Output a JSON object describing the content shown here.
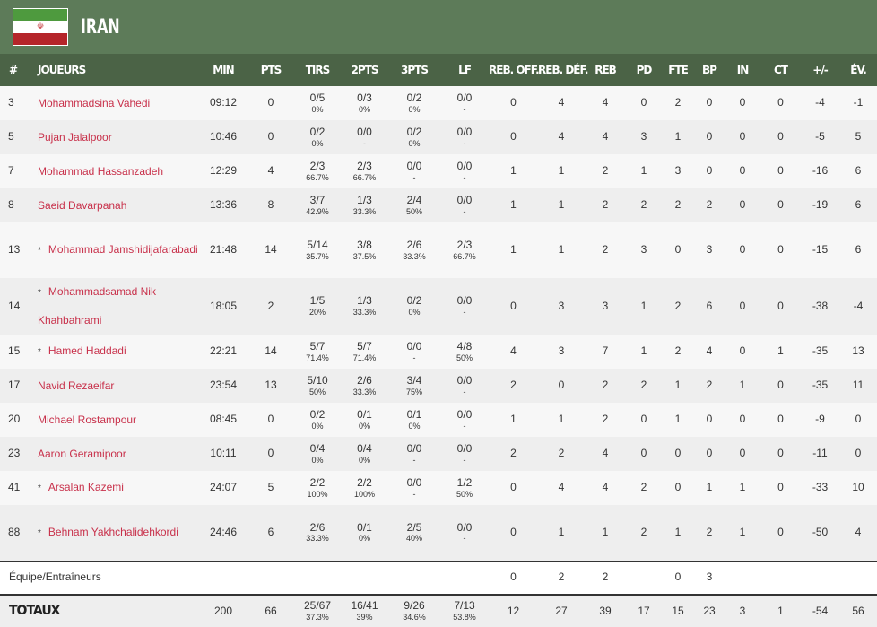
{
  "team": {
    "name": "IRAN",
    "flag_icon": "iran-flag"
  },
  "headers": [
    "#",
    "JOUEURS",
    "MIN",
    "PTS",
    "TIRS",
    "2PTS",
    "3PTS",
    "LF",
    "REB. OFF.",
    "REB. DÉF.",
    "REB",
    "PD",
    "FTE",
    "BP",
    "IN",
    "CT",
    "+/-",
    "ÉV."
  ],
  "players": [
    {
      "num": "3",
      "name": "Mohammadsina Vahedi",
      "starter": false,
      "min": "09:12",
      "pts": "0",
      "tirs": "0/5",
      "tirs_pct": "0%",
      "p2": "0/3",
      "p2_pct": "0%",
      "p3": "0/2",
      "p3_pct": "0%",
      "lf": "0/0",
      "lf_pct": "-",
      "ro": "0",
      "rd": "4",
      "reb": "4",
      "pd": "0",
      "fte": "2",
      "bp": "0",
      "in": "0",
      "ct": "0",
      "pm": "-4",
      "ev": "-1"
    },
    {
      "num": "5",
      "name": "Pujan Jalalpoor",
      "starter": false,
      "min": "10:46",
      "pts": "0",
      "tirs": "0/2",
      "tirs_pct": "0%",
      "p2": "0/0",
      "p2_pct": "-",
      "p3": "0/2",
      "p3_pct": "0%",
      "lf": "0/0",
      "lf_pct": "-",
      "ro": "0",
      "rd": "4",
      "reb": "4",
      "pd": "3",
      "fte": "1",
      "bp": "0",
      "in": "0",
      "ct": "0",
      "pm": "-5",
      "ev": "5"
    },
    {
      "num": "7",
      "name": "Mohammad Hassanzadeh",
      "starter": false,
      "min": "12:29",
      "pts": "4",
      "tirs": "2/3",
      "tirs_pct": "66.7%",
      "p2": "2/3",
      "p2_pct": "66.7%",
      "p3": "0/0",
      "p3_pct": "-",
      "lf": "0/0",
      "lf_pct": "-",
      "ro": "1",
      "rd": "1",
      "reb": "2",
      "pd": "1",
      "fte": "3",
      "bp": "0",
      "in": "0",
      "ct": "0",
      "pm": "-16",
      "ev": "6"
    },
    {
      "num": "8",
      "name": "Saeid Davarpanah",
      "starter": false,
      "min": "13:36",
      "pts": "8",
      "tirs": "3/7",
      "tirs_pct": "42.9%",
      "p2": "1/3",
      "p2_pct": "33.3%",
      "p3": "2/4",
      "p3_pct": "50%",
      "lf": "0/0",
      "lf_pct": "-",
      "ro": "1",
      "rd": "1",
      "reb": "2",
      "pd": "2",
      "fte": "2",
      "bp": "2",
      "in": "0",
      "ct": "0",
      "pm": "-19",
      "ev": "6"
    },
    {
      "num": "13",
      "name": "Mohammad Jamshidijafarabadi",
      "starter": true,
      "min": "21:48",
      "pts": "14",
      "tirs": "5/14",
      "tirs_pct": "35.7%",
      "p2": "3/8",
      "p2_pct": "37.5%",
      "p3": "2/6",
      "p3_pct": "33.3%",
      "lf": "2/3",
      "lf_pct": "66.7%",
      "ro": "1",
      "rd": "1",
      "reb": "2",
      "pd": "3",
      "fte": "0",
      "bp": "3",
      "in": "0",
      "ct": "0",
      "pm": "-15",
      "ev": "6"
    },
    {
      "num": "14",
      "name": "Mohammadsamad Nik Khahbahrami",
      "starter": true,
      "min": "18:05",
      "pts": "2",
      "tirs": "1/5",
      "tirs_pct": "20%",
      "p2": "1/3",
      "p2_pct": "33.3%",
      "p3": "0/2",
      "p3_pct": "0%",
      "lf": "0/0",
      "lf_pct": "-",
      "ro": "0",
      "rd": "3",
      "reb": "3",
      "pd": "1",
      "fte": "2",
      "bp": "6",
      "in": "0",
      "ct": "0",
      "pm": "-38",
      "ev": "-4"
    },
    {
      "num": "15",
      "name": "Hamed Haddadi",
      "starter": true,
      "min": "22:21",
      "pts": "14",
      "tirs": "5/7",
      "tirs_pct": "71.4%",
      "p2": "5/7",
      "p2_pct": "71.4%",
      "p3": "0/0",
      "p3_pct": "-",
      "lf": "4/8",
      "lf_pct": "50%",
      "ro": "4",
      "rd": "3",
      "reb": "7",
      "pd": "1",
      "fte": "2",
      "bp": "4",
      "in": "0",
      "ct": "1",
      "pm": "-35",
      "ev": "13"
    },
    {
      "num": "17",
      "name": "Navid Rezaeifar",
      "starter": false,
      "min": "23:54",
      "pts": "13",
      "tirs": "5/10",
      "tirs_pct": "50%",
      "p2": "2/6",
      "p2_pct": "33.3%",
      "p3": "3/4",
      "p3_pct": "75%",
      "lf": "0/0",
      "lf_pct": "-",
      "ro": "2",
      "rd": "0",
      "reb": "2",
      "pd": "2",
      "fte": "1",
      "bp": "2",
      "in": "1",
      "ct": "0",
      "pm": "-35",
      "ev": "11"
    },
    {
      "num": "20",
      "name": "Michael Rostampour",
      "starter": false,
      "min": "08:45",
      "pts": "0",
      "tirs": "0/2",
      "tirs_pct": "0%",
      "p2": "0/1",
      "p2_pct": "0%",
      "p3": "0/1",
      "p3_pct": "0%",
      "lf": "0/0",
      "lf_pct": "-",
      "ro": "1",
      "rd": "1",
      "reb": "2",
      "pd": "0",
      "fte": "1",
      "bp": "0",
      "in": "0",
      "ct": "0",
      "pm": "-9",
      "ev": "0"
    },
    {
      "num": "23",
      "name": "Aaron Geramipoor",
      "starter": false,
      "min": "10:11",
      "pts": "0",
      "tirs": "0/4",
      "tirs_pct": "0%",
      "p2": "0/4",
      "p2_pct": "0%",
      "p3": "0/0",
      "p3_pct": "-",
      "lf": "0/0",
      "lf_pct": "-",
      "ro": "2",
      "rd": "2",
      "reb": "4",
      "pd": "0",
      "fte": "0",
      "bp": "0",
      "in": "0",
      "ct": "0",
      "pm": "-11",
      "ev": "0"
    },
    {
      "num": "41",
      "name": "Arsalan Kazemi",
      "starter": true,
      "min": "24:07",
      "pts": "5",
      "tirs": "2/2",
      "tirs_pct": "100%",
      "p2": "2/2",
      "p2_pct": "100%",
      "p3": "0/0",
      "p3_pct": "-",
      "lf": "1/2",
      "lf_pct": "50%",
      "ro": "0",
      "rd": "4",
      "reb": "4",
      "pd": "2",
      "fte": "0",
      "bp": "1",
      "in": "1",
      "ct": "0",
      "pm": "-33",
      "ev": "10"
    },
    {
      "num": "88",
      "name": "Behnam Yakhchalidehkordi",
      "starter": true,
      "min": "24:46",
      "pts": "6",
      "tirs": "2/6",
      "tirs_pct": "33.3%",
      "p2": "0/1",
      "p2_pct": "0%",
      "p3": "2/5",
      "p3_pct": "40%",
      "lf": "0/0",
      "lf_pct": "-",
      "ro": "0",
      "rd": "1",
      "reb": "1",
      "pd": "2",
      "fte": "1",
      "bp": "2",
      "in": "1",
      "ct": "0",
      "pm": "-50",
      "ev": "4"
    }
  ],
  "team_row": {
    "label": "Équipe/Entraîneurs",
    "ro": "0",
    "rd": "2",
    "reb": "2",
    "fte": "0",
    "bp": "3"
  },
  "totals": {
    "label": "TOTAUX",
    "min": "200",
    "pts": "66",
    "tirs": "25/67",
    "tirs_pct": "37.3%",
    "p2": "16/41",
    "p2_pct": "39%",
    "p3": "9/26",
    "p3_pct": "34.6%",
    "lf": "7/13",
    "lf_pct": "53.8%",
    "ro": "12",
    "rd": "27",
    "reb": "39",
    "pd": "17",
    "fte": "15",
    "bp": "23",
    "in": "3",
    "ct": "1",
    "pm": "-54",
    "ev": "56"
  }
}
